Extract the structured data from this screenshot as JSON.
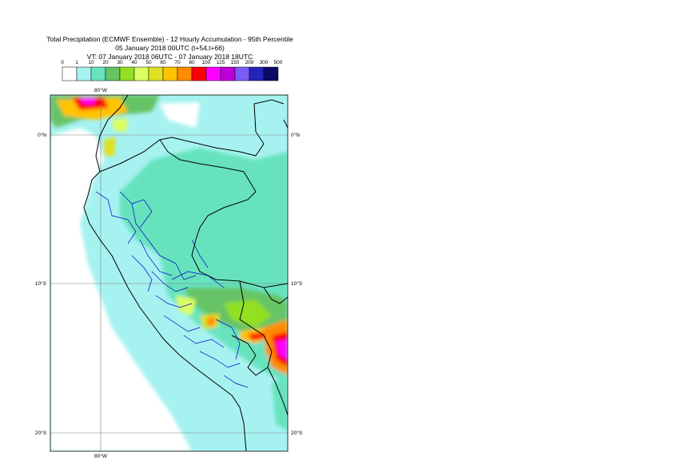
{
  "header": {
    "title_line1": "Total Precipitation (ECMWF Ensemble) - 12 Hourly Accumulation - 95th Percentile",
    "title_line2": "05 January 2018 00UTC (t+54,t+66)",
    "title_line3": "VT: 07 January 2018 06UTC - 07 January 2018 18UTC"
  },
  "legend": {
    "levels": [
      "0",
      "1",
      "10",
      "20",
      "30",
      "40",
      "50",
      "60",
      "70",
      "80",
      "100",
      "125",
      "150",
      "200",
      "300",
      "500"
    ],
    "colors": [
      "#ffffff",
      "#a6f2f0",
      "#66e3bd",
      "#66c466",
      "#93e024",
      "#dcff61",
      "#e0e024",
      "#ffc300",
      "#ff8c00",
      "#ff0000",
      "#ff00ff",
      "#ba00d6",
      "#7a5cf5",
      "#2424b8",
      "#0a0a66"
    ]
  },
  "map": {
    "lon_labels": [
      "80°W",
      "80°W"
    ],
    "lat_labels_left": [
      "0°N",
      "10°S",
      "20°S"
    ],
    "lat_labels_right": [
      "0°N",
      "10°S",
      "20°S"
    ],
    "base_color": "#a6f2f0",
    "grid_color": "#808080",
    "boundary_color": "#000000",
    "region_color": "#0000cc"
  }
}
